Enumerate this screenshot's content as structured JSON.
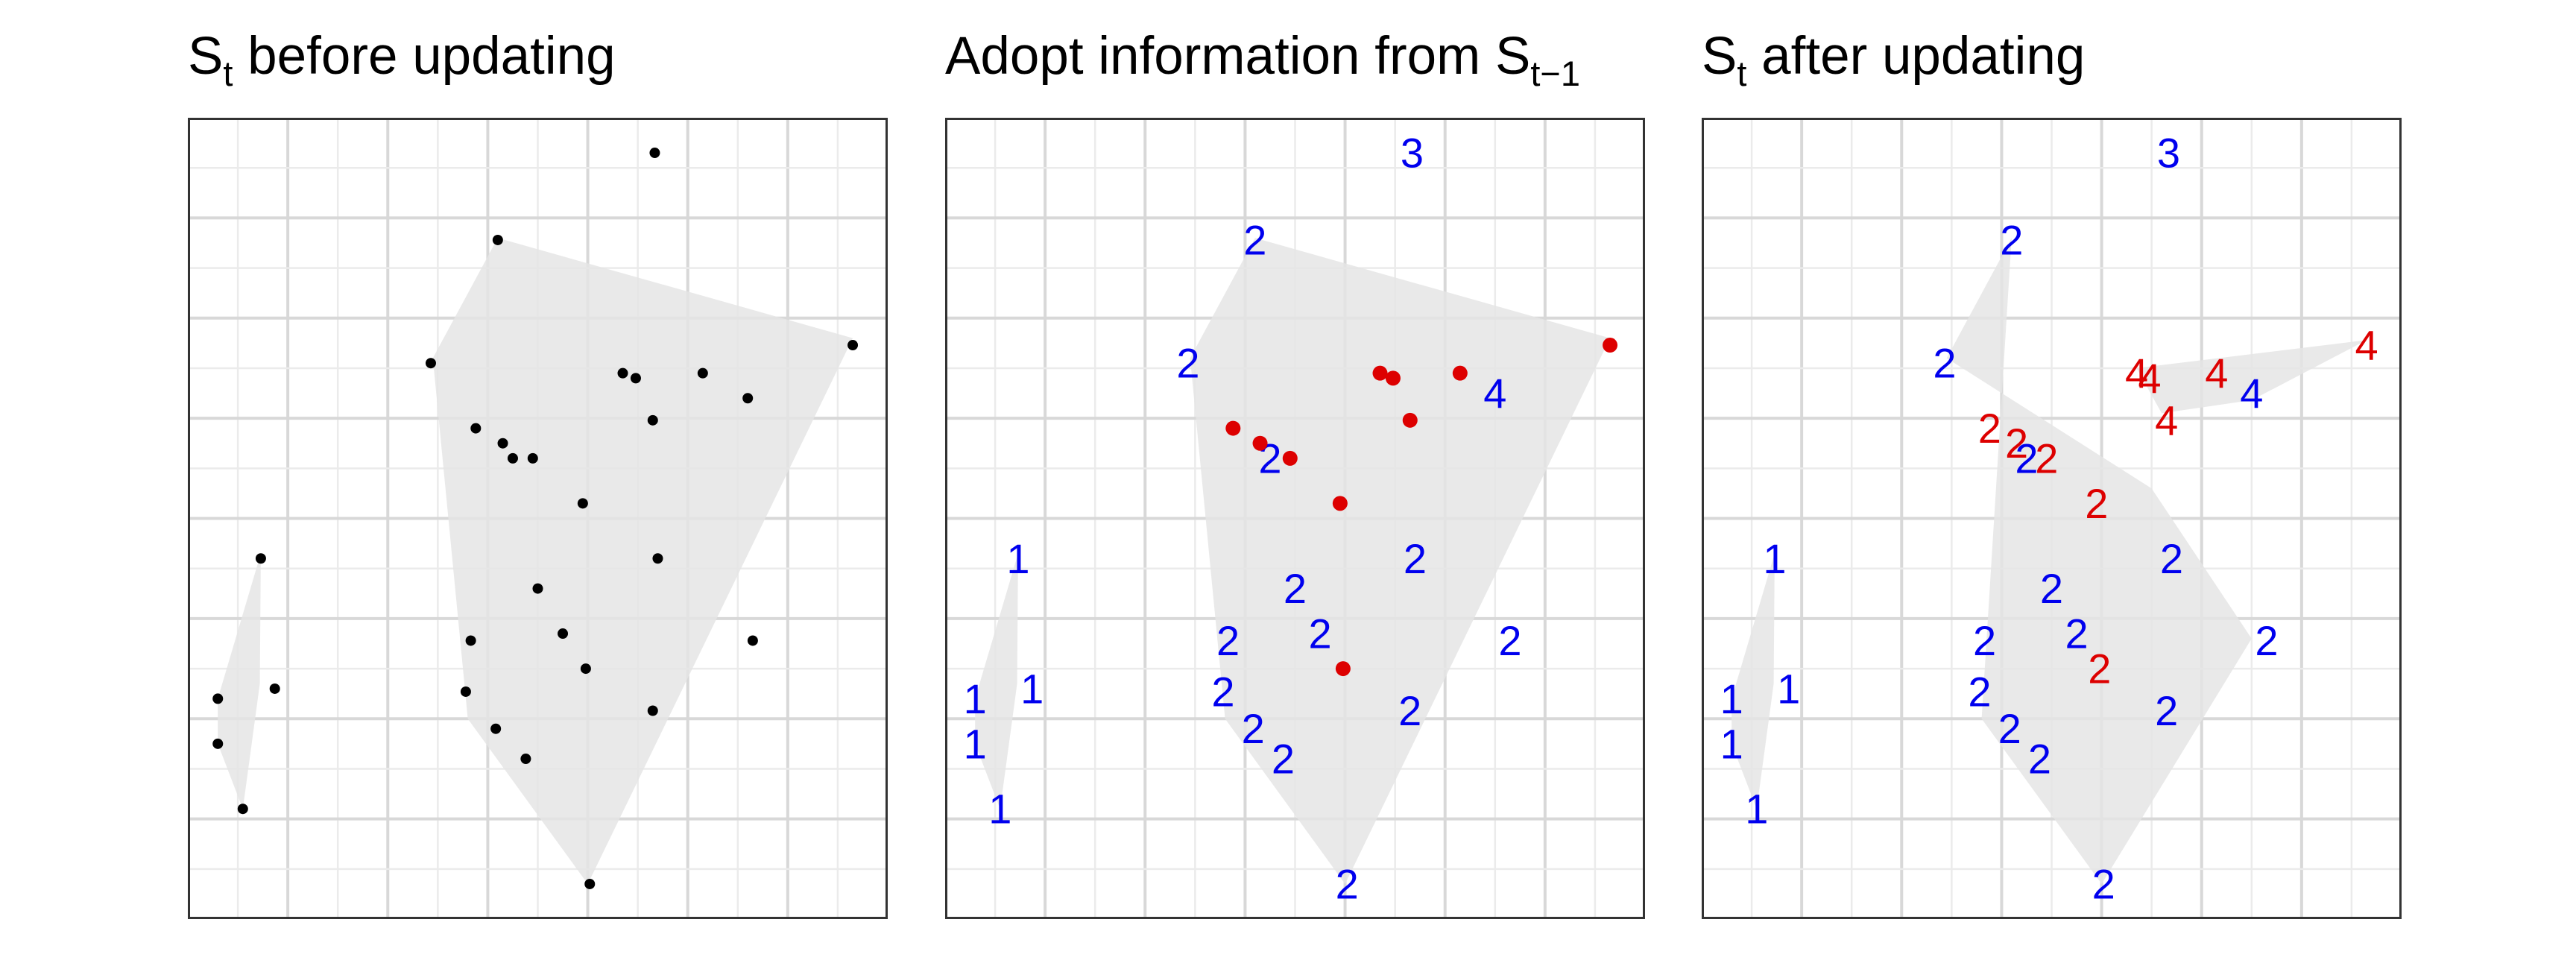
{
  "chart_data": [
    {
      "type": "scatter",
      "title_parts": {
        "main": "S",
        "sub": "t",
        "rest": " before updating"
      },
      "xlim": [
        0,
        7
      ],
      "ylim": [
        0,
        8
      ],
      "grid": true,
      "hulls": [
        {
          "fill": "#e5e5e5",
          "points": [
            [
              4.0,
              0.35
            ],
            [
              6.65,
              5.8
            ],
            [
              3.1,
              6.8
            ],
            [
              2.45,
              5.6
            ],
            [
              2.8,
              2.0
            ]
          ]
        },
        {
          "fill": "#e5e5e5",
          "points": [
            [
              0.55,
              1.1
            ],
            [
              0.72,
              2.35
            ],
            [
              0.73,
              3.65
            ],
            [
              0.3,
              2.2
            ],
            [
              0.3,
              1.75
            ]
          ]
        }
      ],
      "points": [
        {
          "x": 4.67,
          "y": 7.65,
          "label": "",
          "color": "#000000"
        },
        {
          "x": 3.1,
          "y": 6.78,
          "label": "",
          "color": "#000000"
        },
        {
          "x": 6.65,
          "y": 5.73,
          "label": "",
          "color": "#000000"
        },
        {
          "x": 2.43,
          "y": 5.55,
          "label": "",
          "color": "#000000"
        },
        {
          "x": 4.35,
          "y": 5.45,
          "label": "",
          "color": "#000000"
        },
        {
          "x": 4.48,
          "y": 5.4,
          "label": "",
          "color": "#000000"
        },
        {
          "x": 5.15,
          "y": 5.45,
          "label": "",
          "color": "#000000"
        },
        {
          "x": 5.6,
          "y": 5.2,
          "label": "",
          "color": "#000000"
        },
        {
          "x": 4.65,
          "y": 4.98,
          "label": "",
          "color": "#000000"
        },
        {
          "x": 2.88,
          "y": 4.9,
          "label": "",
          "color": "#000000"
        },
        {
          "x": 3.15,
          "y": 4.75,
          "label": "",
          "color": "#000000"
        },
        {
          "x": 3.25,
          "y": 4.6,
          "label": "",
          "color": "#000000"
        },
        {
          "x": 3.45,
          "y": 4.6,
          "label": "",
          "color": "#000000"
        },
        {
          "x": 3.95,
          "y": 4.15,
          "label": "",
          "color": "#000000"
        },
        {
          "x": 4.7,
          "y": 3.6,
          "label": "",
          "color": "#000000"
        },
        {
          "x": 3.5,
          "y": 3.3,
          "label": "",
          "color": "#000000"
        },
        {
          "x": 2.83,
          "y": 2.78,
          "label": "",
          "color": "#000000"
        },
        {
          "x": 3.75,
          "y": 2.85,
          "label": "",
          "color": "#000000"
        },
        {
          "x": 5.65,
          "y": 2.78,
          "label": "",
          "color": "#000000"
        },
        {
          "x": 3.98,
          "y": 2.5,
          "label": "",
          "color": "#000000"
        },
        {
          "x": 2.78,
          "y": 2.27,
          "label": "",
          "color": "#000000"
        },
        {
          "x": 4.65,
          "y": 2.08,
          "label": "",
          "color": "#000000"
        },
        {
          "x": 3.08,
          "y": 1.9,
          "label": "",
          "color": "#000000"
        },
        {
          "x": 3.38,
          "y": 1.6,
          "label": "",
          "color": "#000000"
        },
        {
          "x": 4.02,
          "y": 0.35,
          "label": "",
          "color": "#000000"
        },
        {
          "x": 0.73,
          "y": 3.6,
          "label": "",
          "color": "#000000"
        },
        {
          "x": 0.87,
          "y": 2.3,
          "label": "",
          "color": "#000000"
        },
        {
          "x": 0.3,
          "y": 2.2,
          "label": "",
          "color": "#000000"
        },
        {
          "x": 0.3,
          "y": 1.75,
          "label": "",
          "color": "#000000"
        },
        {
          "x": 0.55,
          "y": 1.1,
          "label": "",
          "color": "#000000"
        }
      ]
    },
    {
      "type": "scatter",
      "title_parts": {
        "main": "Adopt information from S",
        "sub": "t−1",
        "rest": ""
      },
      "xlim": [
        0,
        7
      ],
      "ylim": [
        0,
        8
      ],
      "grid": true,
      "hulls": [
        {
          "fill": "#e5e5e5",
          "points": [
            [
              4.0,
              0.35
            ],
            [
              6.65,
              5.8
            ],
            [
              3.1,
              6.8
            ],
            [
              2.45,
              5.6
            ],
            [
              2.8,
              2.0
            ]
          ]
        },
        {
          "fill": "#e5e5e5",
          "points": [
            [
              0.55,
              1.1
            ],
            [
              0.72,
              2.35
            ],
            [
              0.73,
              3.65
            ],
            [
              0.3,
              2.2
            ],
            [
              0.3,
              1.75
            ]
          ]
        }
      ],
      "points": [
        {
          "x": 4.67,
          "y": 7.65,
          "label": "3",
          "color": "#0000ee"
        },
        {
          "x": 3.1,
          "y": 6.78,
          "label": "2",
          "color": "#0000ee"
        },
        {
          "x": 2.43,
          "y": 5.55,
          "label": "2",
          "color": "#0000ee"
        },
        {
          "x": 5.5,
          "y": 5.25,
          "label": "4",
          "color": "#0000ee"
        },
        {
          "x": 3.25,
          "y": 4.6,
          "label": "2",
          "color": "#0000ee"
        },
        {
          "x": 4.7,
          "y": 3.6,
          "label": "2",
          "color": "#0000ee"
        },
        {
          "x": 3.5,
          "y": 3.3,
          "label": "2",
          "color": "#0000ee"
        },
        {
          "x": 2.83,
          "y": 2.78,
          "label": "2",
          "color": "#0000ee"
        },
        {
          "x": 3.75,
          "y": 2.85,
          "label": "2",
          "color": "#0000ee"
        },
        {
          "x": 5.65,
          "y": 2.78,
          "label": "2",
          "color": "#0000ee"
        },
        {
          "x": 2.78,
          "y": 2.27,
          "label": "2",
          "color": "#0000ee"
        },
        {
          "x": 4.65,
          "y": 2.08,
          "label": "2",
          "color": "#0000ee"
        },
        {
          "x": 3.08,
          "y": 1.9,
          "label": "2",
          "color": "#0000ee"
        },
        {
          "x": 3.38,
          "y": 1.6,
          "label": "2",
          "color": "#0000ee"
        },
        {
          "x": 4.02,
          "y": 0.35,
          "label": "2",
          "color": "#0000ee"
        },
        {
          "x": 0.73,
          "y": 3.6,
          "label": "1",
          "color": "#0000ee"
        },
        {
          "x": 0.87,
          "y": 2.3,
          "label": "1",
          "color": "#0000ee"
        },
        {
          "x": 0.3,
          "y": 2.2,
          "label": "1",
          "color": "#0000ee"
        },
        {
          "x": 0.3,
          "y": 1.75,
          "label": "1",
          "color": "#0000ee"
        },
        {
          "x": 0.55,
          "y": 1.1,
          "label": "1",
          "color": "#0000ee"
        },
        {
          "x": 6.65,
          "y": 5.73,
          "label": "",
          "color": "#dd0000"
        },
        {
          "x": 4.35,
          "y": 5.45,
          "label": "",
          "color": "#dd0000"
        },
        {
          "x": 4.48,
          "y": 5.4,
          "label": "",
          "color": "#dd0000"
        },
        {
          "x": 5.15,
          "y": 5.45,
          "label": "",
          "color": "#dd0000"
        },
        {
          "x": 4.65,
          "y": 4.98,
          "label": "",
          "color": "#dd0000"
        },
        {
          "x": 2.88,
          "y": 4.9,
          "label": "",
          "color": "#dd0000"
        },
        {
          "x": 3.15,
          "y": 4.75,
          "label": "",
          "color": "#dd0000"
        },
        {
          "x": 3.45,
          "y": 4.6,
          "label": "",
          "color": "#dd0000"
        },
        {
          "x": 3.95,
          "y": 4.15,
          "label": "",
          "color": "#dd0000"
        },
        {
          "x": 3.98,
          "y": 2.5,
          "label": "",
          "color": "#dd0000"
        }
      ]
    },
    {
      "type": "scatter",
      "title_parts": {
        "main": "S",
        "sub": "t",
        "rest": " after updating"
      },
      "xlim": [
        0,
        7
      ],
      "ylim": [
        0,
        8
      ],
      "grid": true,
      "hulls": [
        {
          "fill": "#e5e5e5",
          "points": [
            [
              4.0,
              0.35
            ],
            [
              5.5,
              2.8
            ],
            [
              4.5,
              4.3
            ],
            [
              2.45,
              5.6
            ],
            [
              3.1,
              6.8
            ],
            [
              2.8,
              2.0
            ]
          ]
        },
        {
          "fill": "#e5e5e5",
          "points": [
            [
              0.55,
              1.1
            ],
            [
              0.72,
              2.35
            ],
            [
              0.73,
              3.65
            ],
            [
              0.3,
              2.2
            ],
            [
              0.3,
              1.75
            ]
          ]
        },
        {
          "fill": "#e5e5e5",
          "points": [
            [
              6.65,
              5.78
            ],
            [
              5.5,
              5.18
            ],
            [
              4.6,
              5.05
            ],
            [
              4.35,
              5.5
            ]
          ]
        }
      ],
      "points": [
        {
          "x": 4.67,
          "y": 7.65,
          "label": "3",
          "color": "#0000ee"
        },
        {
          "x": 3.1,
          "y": 6.78,
          "label": "2",
          "color": "#0000ee"
        },
        {
          "x": 2.43,
          "y": 5.55,
          "label": "2",
          "color": "#0000ee"
        },
        {
          "x": 5.5,
          "y": 5.25,
          "label": "4",
          "color": "#0000ee"
        },
        {
          "x": 3.25,
          "y": 4.6,
          "label": "2",
          "color": "#0000ee"
        },
        {
          "x": 4.7,
          "y": 3.6,
          "label": "2",
          "color": "#0000ee"
        },
        {
          "x": 3.5,
          "y": 3.3,
          "label": "2",
          "color": "#0000ee"
        },
        {
          "x": 2.83,
          "y": 2.78,
          "label": "2",
          "color": "#0000ee"
        },
        {
          "x": 3.75,
          "y": 2.85,
          "label": "2",
          "color": "#0000ee"
        },
        {
          "x": 5.65,
          "y": 2.78,
          "label": "2",
          "color": "#0000ee"
        },
        {
          "x": 2.78,
          "y": 2.27,
          "label": "2",
          "color": "#0000ee"
        },
        {
          "x": 4.65,
          "y": 2.08,
          "label": "2",
          "color": "#0000ee"
        },
        {
          "x": 3.08,
          "y": 1.9,
          "label": "2",
          "color": "#0000ee"
        },
        {
          "x": 3.38,
          "y": 1.6,
          "label": "2",
          "color": "#0000ee"
        },
        {
          "x": 4.02,
          "y": 0.35,
          "label": "2",
          "color": "#0000ee"
        },
        {
          "x": 0.73,
          "y": 3.6,
          "label": "1",
          "color": "#0000ee"
        },
        {
          "x": 0.87,
          "y": 2.3,
          "label": "1",
          "color": "#0000ee"
        },
        {
          "x": 0.3,
          "y": 2.2,
          "label": "1",
          "color": "#0000ee"
        },
        {
          "x": 0.3,
          "y": 1.75,
          "label": "1",
          "color": "#0000ee"
        },
        {
          "x": 0.55,
          "y": 1.1,
          "label": "1",
          "color": "#0000ee"
        },
        {
          "x": 6.65,
          "y": 5.73,
          "label": "4",
          "color": "#dd0000"
        },
        {
          "x": 4.35,
          "y": 5.45,
          "label": "4",
          "color": "#dd0000"
        },
        {
          "x": 4.48,
          "y": 5.4,
          "label": "4",
          "color": "#dd0000"
        },
        {
          "x": 5.15,
          "y": 5.45,
          "label": "4",
          "color": "#dd0000"
        },
        {
          "x": 4.65,
          "y": 4.98,
          "label": "4",
          "color": "#dd0000"
        },
        {
          "x": 2.88,
          "y": 4.9,
          "label": "2",
          "color": "#dd0000"
        },
        {
          "x": 3.15,
          "y": 4.75,
          "label": "2",
          "color": "#dd0000"
        },
        {
          "x": 3.45,
          "y": 4.6,
          "label": "2",
          "color": "#dd0000"
        },
        {
          "x": 3.95,
          "y": 4.15,
          "label": "2",
          "color": "#dd0000"
        },
        {
          "x": 3.98,
          "y": 2.5,
          "label": "2",
          "color": "#dd0000"
        }
      ]
    }
  ]
}
